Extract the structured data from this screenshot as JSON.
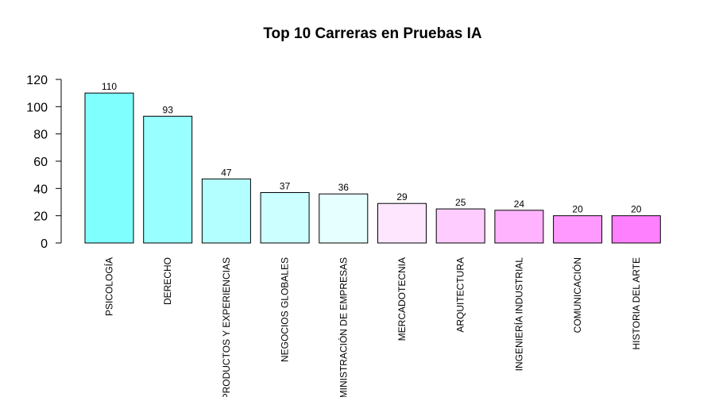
{
  "chart_data": {
    "type": "bar",
    "title": "Top 10 Carreras en Pruebas IA",
    "xlabel": "",
    "ylabel": "",
    "ylim": [
      0,
      120
    ],
    "yticks": [
      0,
      20,
      40,
      60,
      80,
      100,
      120
    ],
    "categories": [
      "PSICOLOGÍA",
      "DERECHO",
      "PRODUCTOS Y EXPERIENCIAS",
      "NEGOCIOS GLOBALES",
      "MINISTRACIÓN DE EMPRESAS",
      "MERCADOTECNIA",
      "ARQUITECTURA",
      "INGENIERÍA INDUSTRIAL",
      "COMUNICACIÓN",
      "HISTORIA DEL ARTE"
    ],
    "values": [
      110,
      93,
      47,
      37,
      36,
      29,
      25,
      24,
      20,
      20
    ],
    "colors": [
      "#80FFFF",
      "#99FFFF",
      "#B3FFFF",
      "#CCFFFF",
      "#E6FFFF",
      "#FFE6FF",
      "#FFCCFF",
      "#FFB3FF",
      "#FF99FF",
      "#FF80FF"
    ],
    "grid": false,
    "legend": "none"
  }
}
